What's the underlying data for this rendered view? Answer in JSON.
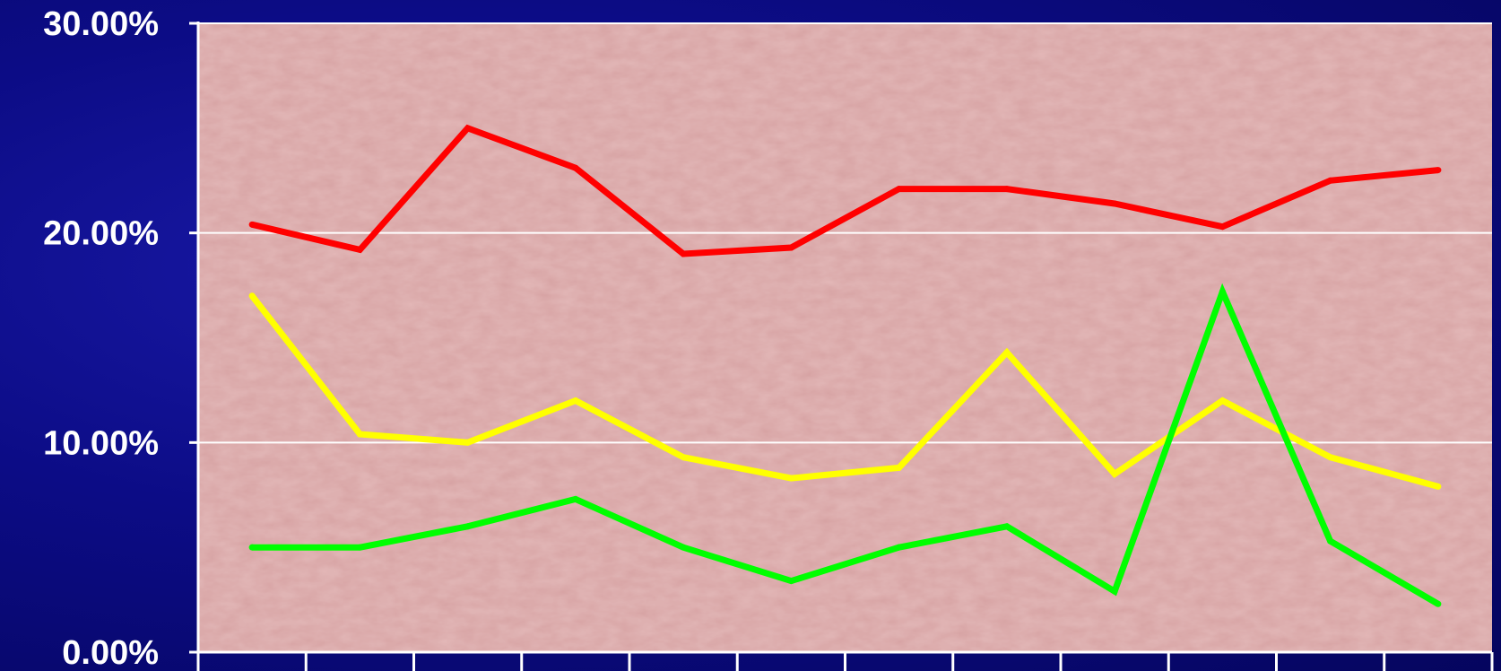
{
  "chart_data": {
    "type": "line",
    "title": "",
    "xlabel": "",
    "ylabel": "",
    "ylim": [
      0,
      30
    ],
    "y_ticks": [
      "0.00%",
      "10.00%",
      "20.00%",
      "30.00%"
    ],
    "y_tick_values": [
      0,
      10,
      20,
      30
    ],
    "categories": [
      "1",
      "2",
      "3",
      "4",
      "5",
      "6",
      "7",
      "8",
      "9",
      "10",
      "11",
      "12"
    ],
    "x_tick_labels_visible": false,
    "grid": "horizontal",
    "legend": "none",
    "plot_background": "#e3b8b8",
    "series": [
      {
        "color": "#ff0000",
        "values": [
          20.4,
          19.2,
          25.0,
          23.1,
          19.0,
          19.3,
          22.1,
          22.1,
          21.4,
          20.3,
          22.5,
          23.0
        ]
      },
      {
        "color": "#ffff00",
        "values": [
          17.0,
          10.4,
          10.0,
          12.0,
          9.3,
          8.3,
          8.8,
          14.3,
          8.5,
          12.0,
          9.3,
          7.9
        ]
      },
      {
        "color": "#00ff00",
        "values": [
          5.0,
          5.0,
          6.0,
          7.3,
          5.0,
          3.4,
          5.0,
          6.0,
          2.9,
          17.2,
          5.3,
          2.3
        ]
      }
    ]
  }
}
